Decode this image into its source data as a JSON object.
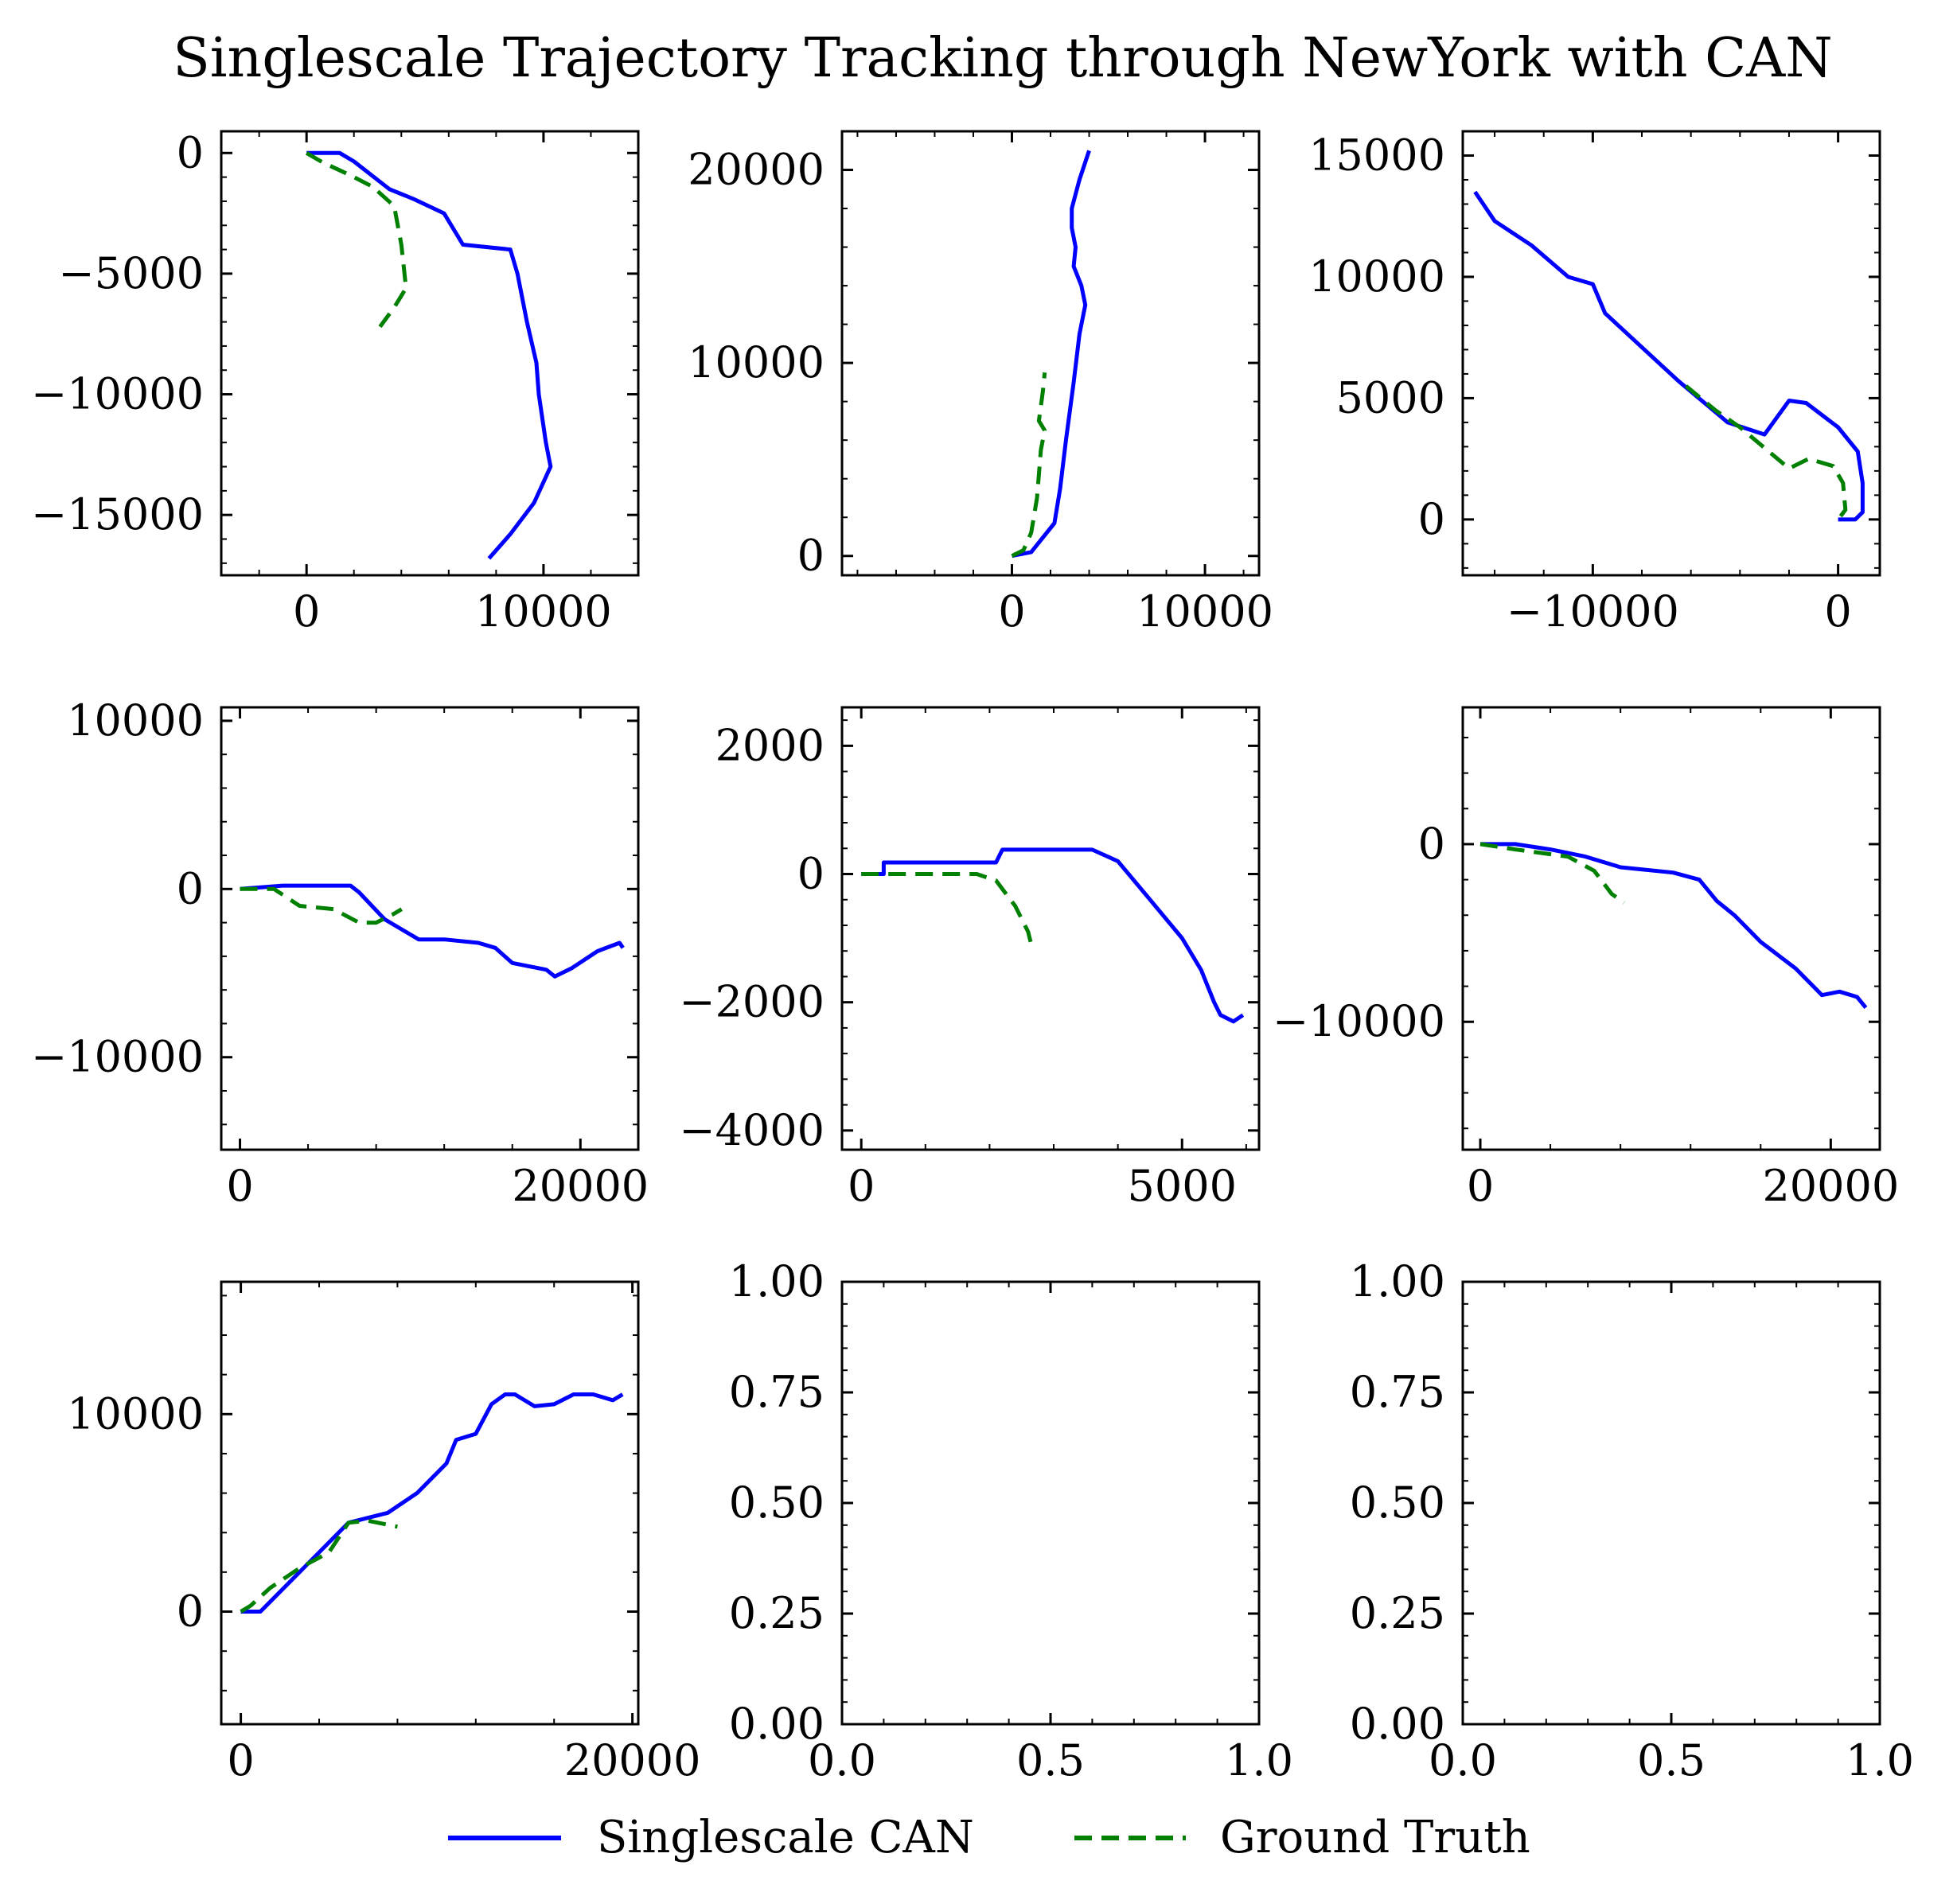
{
  "figure": {
    "title": "Singlescale Trajectory Tracking through NewYork with CAN",
    "legend": [
      {
        "label": "Singlescale CAN",
        "color": "#0000ff",
        "dash": "solid"
      },
      {
        "label": "Ground Truth",
        "color": "#008000",
        "dash": "dashed"
      }
    ],
    "legend_placement": "bottom-center"
  },
  "chart_data": [
    {
      "type": "line",
      "xlim": [
        -3600,
        14000
      ],
      "ylim": [
        -17500,
        900
      ],
      "xticks": [
        0,
        10000
      ],
      "xticklabels": [
        "0",
        "10000"
      ],
      "yticks": [
        0,
        -5000,
        -10000,
        -15000
      ],
      "yticklabels": [
        "0",
        "−5000",
        "−10000",
        "−15000"
      ],
      "series": [
        {
          "name": "Singlescale CAN",
          "x": [
            0,
            1400,
            2000,
            3500,
            4500,
            5800,
            6600,
            8600,
            8900,
            9300,
            9700,
            9800,
            10100,
            10300,
            9600,
            8600,
            7700
          ],
          "y": [
            0,
            0,
            -350,
            -1500,
            -1900,
            -2500,
            -3800,
            -4000,
            -5000,
            -7000,
            -8700,
            -10000,
            -12000,
            -13000,
            -14500,
            -15800,
            -16800
          ]
        },
        {
          "name": "Ground Truth",
          "x": [
            0,
            700,
            1800,
            2800,
            3700,
            4000,
            4200,
            3700,
            3100
          ],
          "y": [
            0,
            -400,
            -900,
            -1400,
            -2200,
            -3800,
            -5600,
            -6400,
            -7200
          ]
        }
      ]
    },
    {
      "type": "line",
      "xlim": [
        -8800,
        12800
      ],
      "ylim": [
        -1000,
        22000
      ],
      "xticks": [
        0,
        10000
      ],
      "xticklabels": [
        "0",
        "10000"
      ],
      "yticks": [
        0,
        10000,
        20000
      ],
      "yticklabels": [
        "0",
        "10000",
        "20000"
      ],
      "series": [
        {
          "name": "Singlescale CAN",
          "x": [
            0,
            1000,
            2200,
            2500,
            2800,
            3200,
            3500,
            3800,
            3600,
            3200,
            3300,
            3100,
            3100,
            3500,
            4000
          ],
          "y": [
            0,
            200,
            1700,
            3500,
            6000,
            9000,
            11500,
            13000,
            14000,
            15000,
            16000,
            17000,
            18000,
            19500,
            21000
          ]
        },
        {
          "name": "Ground Truth",
          "x": [
            0,
            600,
            1000,
            1300,
            1500,
            1700,
            1400,
            1600,
            1700
          ],
          "y": [
            0,
            300,
            1200,
            3000,
            5500,
            6500,
            7000,
            8500,
            9500
          ]
        }
      ]
    },
    {
      "type": "line",
      "xlim": [
        -15300,
        1700
      ],
      "ylim": [
        -2300,
        16000
      ],
      "xticks": [
        -10000,
        0
      ],
      "xticklabels": [
        "−10000",
        "0"
      ],
      "yticks": [
        0,
        5000,
        10000,
        15000
      ],
      "yticklabels": [
        "0",
        "5000",
        "10000",
        "15000"
      ],
      "series": [
        {
          "name": "Singlescale CAN",
          "x": [
            -14800,
            -14000,
            -12500,
            -11000,
            -10000,
            -9500,
            -8000,
            -6500,
            -4500,
            -3000,
            -2000,
            -1300,
            0,
            800,
            1000,
            1000,
            700,
            0
          ],
          "y": [
            13500,
            12300,
            11300,
            10000,
            9700,
            8500,
            7100,
            5700,
            4000,
            3500,
            4900,
            4800,
            3800,
            2800,
            1500,
            300,
            0,
            0
          ]
        },
        {
          "name": "Ground Truth",
          "x": [
            -6200,
            -5000,
            -4000,
            -2000,
            -1200,
            -200,
            200,
            300,
            0
          ],
          "y": [
            5500,
            4500,
            3800,
            2100,
            2500,
            2200,
            1500,
            400,
            0
          ]
        }
      ]
    },
    {
      "type": "line",
      "xlim": [
        -1100,
        23400
      ],
      "ylim": [
        -15500,
        10800
      ],
      "xticks": [
        0,
        20000
      ],
      "xticklabels": [
        "0",
        "20000"
      ],
      "yticks": [
        10000,
        0,
        -10000
      ],
      "yticklabels": [
        "10000",
        "0",
        "−10000"
      ],
      "series": [
        {
          "name": "Singlescale CAN",
          "x": [
            0,
            2500,
            6500,
            7000,
            8500,
            10500,
            12000,
            14000,
            15000,
            16000,
            17000,
            18000,
            18500,
            19500,
            21000,
            22300,
            22500
          ],
          "y": [
            0,
            200,
            200,
            -200,
            -1800,
            -3000,
            -3000,
            -3200,
            -3500,
            -4400,
            -4600,
            -4800,
            -5200,
            -4700,
            -3700,
            -3200,
            -3500
          ]
        },
        {
          "name": "Ground Truth",
          "x": [
            0,
            2000,
            3500,
            5500,
            7000,
            8000,
            9000,
            9500
          ],
          "y": [
            0,
            0,
            -1000,
            -1200,
            -2000,
            -2000,
            -1500,
            -1200
          ]
        }
      ]
    },
    {
      "type": "line",
      "xlim": [
        -300,
        6200
      ],
      "ylim": [
        -4300,
        2600
      ],
      "xticks": [
        0,
        5000
      ],
      "xticklabels": [
        "0",
        "5000"
      ],
      "yticks": [
        2000,
        0,
        -2000,
        -4000
      ],
      "yticklabels": [
        "2000",
        "0",
        "−2000",
        "−4000"
      ],
      "series": [
        {
          "name": "Singlescale CAN",
          "x": [
            0,
            350,
            350,
            1900,
            2100,
            2200,
            3000,
            3600,
            4000,
            4500,
            5000,
            5300,
            5500,
            5600,
            5800,
            5950
          ],
          "y": [
            0,
            0,
            180,
            180,
            180,
            380,
            380,
            380,
            200,
            -400,
            -1000,
            -1500,
            -2000,
            -2200,
            -2300,
            -2200
          ]
        },
        {
          "name": "Ground Truth",
          "x": [
            0,
            1800,
            2100,
            2400,
            2600,
            2650
          ],
          "y": [
            0,
            0,
            -100,
            -500,
            -900,
            -1100
          ]
        }
      ]
    },
    {
      "type": "line",
      "xlim": [
        -1000,
        22800
      ],
      "ylim": [
        -17200,
        7700
      ],
      "xticks": [
        0,
        20000
      ],
      "xticklabels": [
        "0",
        "20000"
      ],
      "yticks": [
        0,
        -10000
      ],
      "yticklabels": [
        "0",
        "−10000"
      ],
      "series": [
        {
          "name": "Singlescale CAN",
          "x": [
            0,
            2000,
            4000,
            6000,
            8000,
            11000,
            12500,
            13500,
            14500,
            16000,
            18000,
            19500,
            20500,
            21500,
            22000
          ],
          "y": [
            0,
            0,
            -300,
            -700,
            -1300,
            -1600,
            -2000,
            -3200,
            -4000,
            -5500,
            -7000,
            -8500,
            -8300,
            -8600,
            -9200
          ]
        },
        {
          "name": "Ground Truth",
          "x": [
            0,
            2000,
            5000,
            6500,
            7500,
            8200
          ],
          "y": [
            0,
            -300,
            -700,
            -1500,
            -2800,
            -3300
          ]
        }
      ]
    },
    {
      "type": "line",
      "xlim": [
        -1000,
        20300
      ],
      "ylim": [
        -5700,
        16700
      ],
      "xticks": [
        0,
        20000
      ],
      "xticklabels": [
        "0",
        "20000"
      ],
      "yticks": [
        10000,
        0
      ],
      "yticklabels": [
        "10000",
        "0"
      ],
      "series": [
        {
          "name": "Singlescale CAN",
          "x": [
            0,
            1000,
            3000,
            5500,
            7500,
            9000,
            10500,
            11000,
            12000,
            12800,
            13500,
            14000,
            15000,
            16000,
            17000,
            18000,
            19000,
            19500
          ],
          "y": [
            0,
            0,
            2000,
            4500,
            5000,
            6000,
            7500,
            8700,
            9000,
            10500,
            11000,
            11000,
            10400,
            10500,
            11000,
            11000,
            10700,
            11000
          ]
        },
        {
          "name": "Ground Truth",
          "x": [
            0,
            500,
            1500,
            3000,
            4500,
            5500,
            6500,
            7500,
            8000
          ],
          "y": [
            0,
            300,
            1200,
            2200,
            3000,
            4500,
            4600,
            4400,
            4300
          ]
        }
      ]
    },
    {
      "type": "line",
      "xlim": [
        0,
        1
      ],
      "ylim": [
        0,
        1
      ],
      "xticks": [
        0,
        0.5,
        1
      ],
      "xticklabels": [
        "0.0",
        "0.5",
        "1.0"
      ],
      "yticks": [
        0,
        0.25,
        0.5,
        0.75,
        1
      ],
      "yticklabels": [
        "0.00",
        "0.25",
        "0.50",
        "0.75",
        "1.00"
      ],
      "series": []
    },
    {
      "type": "line",
      "xlim": [
        0,
        1
      ],
      "ylim": [
        0,
        1
      ],
      "xticks": [
        0,
        0.5,
        1
      ],
      "xticklabels": [
        "0.0",
        "0.5",
        "1.0"
      ],
      "yticks": [
        0,
        0.25,
        0.5,
        0.75,
        1
      ],
      "yticklabels": [
        "0.00",
        "0.25",
        "0.50",
        "0.75",
        "1.00"
      ],
      "series": []
    }
  ]
}
